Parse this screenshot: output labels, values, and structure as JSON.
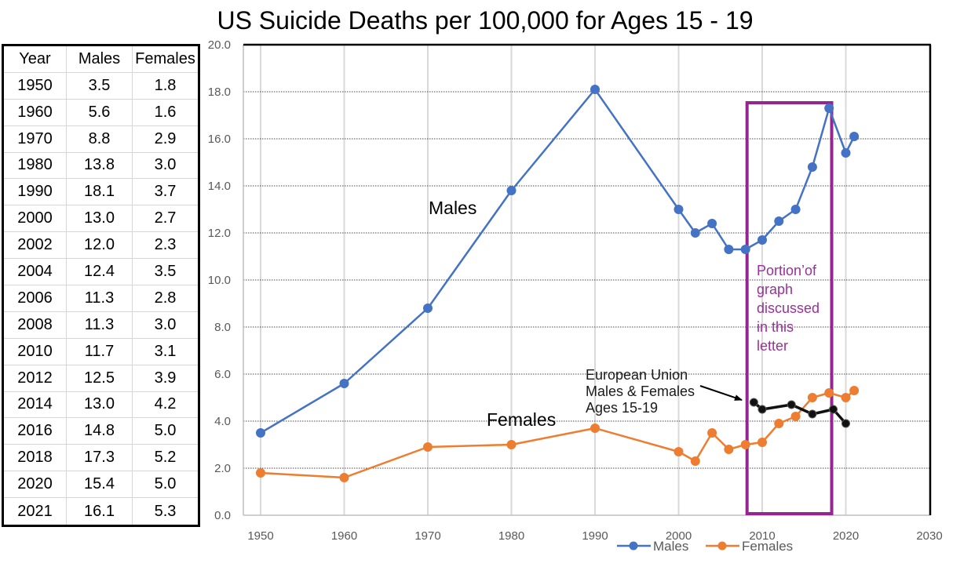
{
  "table": {
    "headers": [
      "Year",
      "Males",
      "Females"
    ],
    "rows": [
      [
        "1950",
        "3.5",
        "1.8"
      ],
      [
        "1960",
        "5.6",
        "1.6"
      ],
      [
        "1970",
        "8.8",
        "2.9"
      ],
      [
        "1980",
        "13.8",
        "3.0"
      ],
      [
        "1990",
        "18.1",
        "3.7"
      ],
      [
        "2000",
        "13.0",
        "2.7"
      ],
      [
        "2002",
        "12.0",
        "2.3"
      ],
      [
        "2004",
        "12.4",
        "3.5"
      ],
      [
        "2006",
        "11.3",
        "2.8"
      ],
      [
        "2008",
        "11.3",
        "3.0"
      ],
      [
        "2010",
        "11.7",
        "3.1"
      ],
      [
        "2012",
        "12.5",
        "3.9"
      ],
      [
        "2014",
        "13.0",
        "4.2"
      ],
      [
        "2016",
        "14.8",
        "5.0"
      ],
      [
        "2018",
        "17.3",
        "5.2"
      ],
      [
        "2020",
        "15.4",
        "5.0"
      ],
      [
        "2021",
        "16.1",
        "5.3"
      ]
    ]
  },
  "chart_data": {
    "type": "line",
    "title": "US Suicide Deaths per 100,000 for Ages 15 - 19",
    "xlabel": "",
    "ylabel": "",
    "xlim": [
      1950,
      2030
    ],
    "ylim": [
      0,
      20
    ],
    "xticks": [
      "1950",
      "1960",
      "1970",
      "1980",
      "1990",
      "2000",
      "2010",
      "2020",
      "2030"
    ],
    "xtick_values": [
      1950,
      1960,
      1970,
      1980,
      1990,
      2000,
      2010,
      2020,
      2030
    ],
    "yticks": [
      "0.0",
      "2.0",
      "4.0",
      "6.0",
      "8.0",
      "10.0",
      "12.0",
      "14.0",
      "16.0",
      "18.0",
      "20.0"
    ],
    "ytick_values": [
      0,
      2,
      4,
      6,
      8,
      10,
      12,
      14,
      16,
      18,
      20
    ],
    "grid": true,
    "legend": "bottom",
    "series": [
      {
        "name": "Males",
        "color": "#4472c4",
        "x": [
          1950,
          1960,
          1970,
          1980,
          1990,
          2000,
          2002,
          2004,
          2006,
          2008,
          2010,
          2012,
          2014,
          2016,
          2018,
          2020,
          2021
        ],
        "y": [
          3.5,
          5.6,
          8.8,
          13.8,
          18.1,
          13.0,
          12.0,
          12.4,
          11.3,
          11.3,
          11.7,
          12.5,
          13.0,
          14.8,
          17.3,
          15.4,
          16.1
        ]
      },
      {
        "name": "Females",
        "color": "#ed7d31",
        "x": [
          1950,
          1960,
          1970,
          1980,
          1990,
          2000,
          2002,
          2004,
          2006,
          2008,
          2010,
          2012,
          2014,
          2016,
          2018,
          2020,
          2021
        ],
        "y": [
          1.8,
          1.6,
          2.9,
          3.0,
          3.7,
          2.7,
          2.3,
          3.5,
          2.8,
          3.0,
          3.1,
          3.9,
          4.2,
          5.0,
          5.2,
          5.0,
          5.3
        ]
      },
      {
        "label": [
          "European Union",
          "Males & Females",
          "Ages 15-19"
        ],
        "color": "#111111",
        "x": [
          2009,
          2010,
          2013.5,
          2016,
          2018.5,
          2020
        ],
        "y": [
          4.8,
          4.5,
          4.7,
          4.3,
          4.5,
          3.9
        ]
      }
    ],
    "annotations": {
      "males_label": "Males",
      "females_label": "Females",
      "highlight": {
        "text": [
          "Portion’of",
          "graph",
          "discussed",
          "in this",
          "letter"
        ],
        "x_range": [
          2008,
          2018.5
        ],
        "y_range": [
          0,
          17.6
        ],
        "color": "#93278f",
        "text_color": "#9b2f9b"
      }
    }
  }
}
